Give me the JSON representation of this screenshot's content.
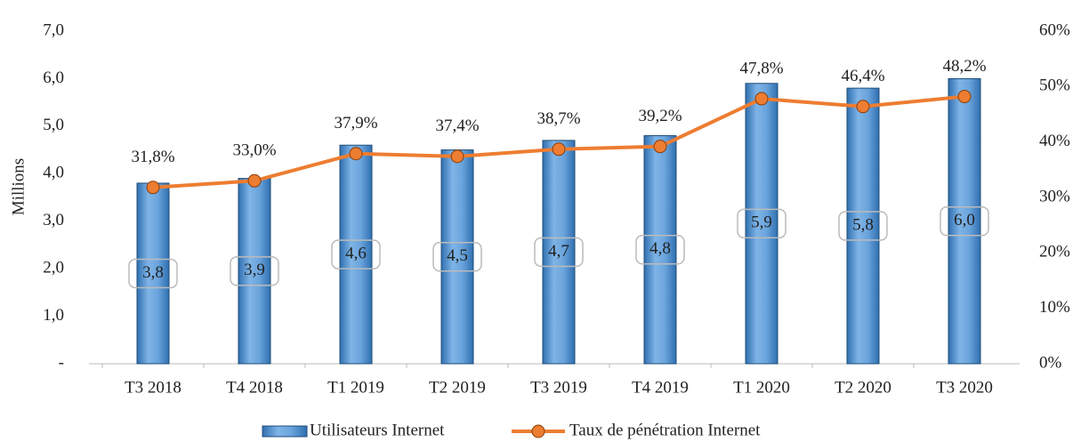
{
  "chart_data": {
    "type": "bar",
    "y_axis_label": "Millions",
    "categories": [
      "T3 2018",
      "T4 2018",
      "T1 2019",
      "T2 2019",
      "T3 2019",
      "T4 2019",
      "T1 2020",
      "T2 2020",
      "T3 2020"
    ],
    "series": [
      {
        "name": "Utilisateurs Internet",
        "type": "bar",
        "color": "#5b9bd5",
        "values": [
          3.8,
          3.9,
          4.6,
          4.5,
          4.7,
          4.8,
          5.9,
          5.8,
          6.0
        ],
        "value_labels": [
          "3,8",
          "3,9",
          "4,6",
          "4,5",
          "4,7",
          "4,8",
          "5,9",
          "5,8",
          "6,0"
        ]
      },
      {
        "name": "Taux de pénétration Internet",
        "type": "line",
        "color": "#ed7d31",
        "axis": "y2",
        "values": [
          31.8,
          33.0,
          37.9,
          37.4,
          38.7,
          39.2,
          47.8,
          46.4,
          48.2
        ],
        "value_labels": [
          "31,8%",
          "33,0%",
          "37,9%",
          "37,4%",
          "38,7%",
          "39,2%",
          "47,8%",
          "46,4%",
          "48,2%"
        ]
      }
    ],
    "ylim": [
      0,
      7
    ],
    "yticks": [
      {
        "value": 0,
        "label": "-"
      },
      {
        "value": 1,
        "label": "1,0"
      },
      {
        "value": 2,
        "label": "2,0"
      },
      {
        "value": 3,
        "label": "3,0"
      },
      {
        "value": 4,
        "label": "4,0"
      },
      {
        "value": 5,
        "label": "5,0"
      },
      {
        "value": 6,
        "label": "6,0"
      },
      {
        "value": 7,
        "label": "7,0"
      }
    ],
    "y2lim": [
      0,
      60
    ],
    "y2ticks": [
      {
        "value": 0,
        "label": "0%"
      },
      {
        "value": 10,
        "label": "10%"
      },
      {
        "value": 20,
        "label": "20%"
      },
      {
        "value": 30,
        "label": "30%"
      },
      {
        "value": 40,
        "label": "40%"
      },
      {
        "value": 50,
        "label": "50%"
      },
      {
        "value": 60,
        "label": "60%"
      }
    ],
    "grid": false,
    "legend": "bottom"
  }
}
